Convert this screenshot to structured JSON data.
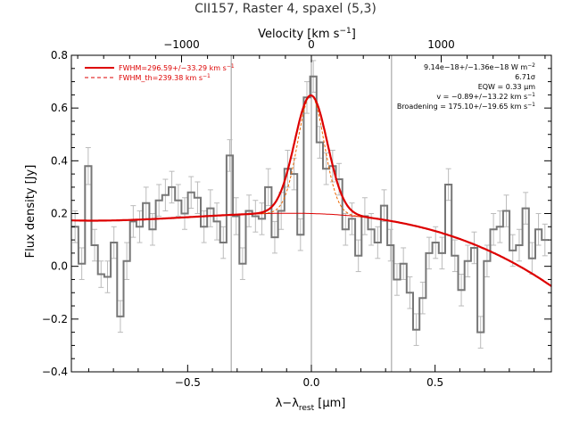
{
  "chart_data": {
    "type": "line",
    "title": "CII157, Raster 4, spaxel (5,3)",
    "xlabel": "λ−λ_rest [μm]",
    "xlabel_main": "λ−λ",
    "xlabel_sub": "rest",
    "xlabel_unit": " [μm]",
    "ylabel": "Flux density [Jy]",
    "top_xlabel": "Velocity [km s⁻¹]",
    "top_xlabel_main": "Velocity [km s",
    "top_xlabel_sup": "−1",
    "top_xlabel_end": "]",
    "xlim": [
      -0.97,
      0.97
    ],
    "ylim": [
      -0.4,
      0.8
    ],
    "x_ticks": [
      -0.5,
      0.0,
      0.5
    ],
    "x_tick_labels": [
      "−0.5",
      "0.0",
      "0.5"
    ],
    "y_ticks": [
      -0.4,
      -0.2,
      0.0,
      0.2,
      0.4,
      0.6,
      0.8
    ],
    "y_tick_labels": [
      "−0.4",
      "−0.2",
      "0.0",
      "0.2",
      "0.4",
      "0.6",
      "0.8"
    ],
    "top_x_ticks_velocity": [
      -1000,
      0,
      1000
    ],
    "top_x_tick_labels": [
      "−1000",
      "0",
      "1000"
    ],
    "velocity_per_micron": 1905.9,
    "vertical_lines_x": [
      -0.324,
      0.0,
      0.324
    ],
    "legend": [
      {
        "label": "FWHM=296.59+/−33.29 km s⁻¹",
        "main": "FWHM=296.59+/−33.29 km s",
        "sup": "−1",
        "style": "solid",
        "color": "#dd0000"
      },
      {
        "label": "FWHM_th=239.38 km s⁻¹",
        "main": "FWHM_th=239.38 km s",
        "sup": "−1",
        "style": "dashed",
        "color": "#dd0000"
      }
    ],
    "annotations": [
      {
        "main": "9.14e−18+/−1.36e−18 W m",
        "sup": "−2"
      },
      {
        "main": "6.71σ",
        "sup": ""
      },
      {
        "main": "EQW = 0.33 μm",
        "sup": ""
      },
      {
        "main": "v = −0.89+/−13.22 km s",
        "sup": "−1"
      },
      {
        "main": "Broadening = 175.10+/−19.65 km s",
        "sup": "−1"
      }
    ],
    "series": [
      {
        "name": "spectrum",
        "style": "step",
        "color": "#777777",
        "x": [
          -0.955,
          -0.928,
          -0.902,
          -0.876,
          -0.85,
          -0.824,
          -0.798,
          -0.772,
          -0.746,
          -0.72,
          -0.694,
          -0.668,
          -0.642,
          -0.616,
          -0.59,
          -0.564,
          -0.538,
          -0.512,
          -0.486,
          -0.46,
          -0.434,
          -0.408,
          -0.382,
          -0.356,
          -0.33,
          -0.304,
          -0.278,
          -0.252,
          -0.226,
          -0.2,
          -0.174,
          -0.148,
          -0.122,
          -0.096,
          -0.07,
          -0.044,
          -0.018,
          0.008,
          0.034,
          0.06,
          0.086,
          0.112,
          0.138,
          0.164,
          0.19,
          0.216,
          0.242,
          0.268,
          0.294,
          0.32,
          0.346,
          0.372,
          0.398,
          0.424,
          0.45,
          0.476,
          0.502,
          0.528,
          0.554,
          0.58,
          0.606,
          0.632,
          0.658,
          0.684,
          0.71,
          0.736,
          0.762,
          0.788,
          0.814,
          0.84,
          0.866,
          0.892,
          0.918,
          0.944
        ],
        "y": [
          0.15,
          0.01,
          0.38,
          0.08,
          -0.03,
          -0.04,
          0.09,
          -0.19,
          0.02,
          0.17,
          0.15,
          0.24,
          0.14,
          0.25,
          0.27,
          0.3,
          0.25,
          0.2,
          0.28,
          0.26,
          0.15,
          0.22,
          0.17,
          0.09,
          0.42,
          0.19,
          0.01,
          0.21,
          0.19,
          0.18,
          0.3,
          0.11,
          0.21,
          0.37,
          0.35,
          0.12,
          0.64,
          0.72,
          0.47,
          0.37,
          0.38,
          0.33,
          0.14,
          0.18,
          0.04,
          0.19,
          0.14,
          0.09,
          0.23,
          0.08,
          -0.05,
          0.01,
          -0.1,
          -0.24,
          -0.12,
          0.05,
          0.09,
          0.05,
          0.31,
          0.04,
          -0.09,
          0.02,
          0.07,
          -0.25,
          0.02,
          0.14,
          0.15,
          0.21,
          0.06,
          0.08,
          0.22,
          0.03,
          0.14,
          0.1
        ],
        "err": [
          0.06,
          0.06,
          0.07,
          0.06,
          0.05,
          0.06,
          0.06,
          0.06,
          0.07,
          0.06,
          0.06,
          0.06,
          0.06,
          0.06,
          0.06,
          0.06,
          0.06,
          0.06,
          0.06,
          0.06,
          0.06,
          0.07,
          0.07,
          0.06,
          0.06,
          0.07,
          0.06,
          0.06,
          0.06,
          0.06,
          0.07,
          0.06,
          0.07,
          0.07,
          0.06,
          0.06,
          0.06,
          0.06,
          0.06,
          0.06,
          0.06,
          0.06,
          0.06,
          0.06,
          0.06,
          0.07,
          0.06,
          0.06,
          0.06,
          0.06,
          0.06,
          0.06,
          0.06,
          0.06,
          0.06,
          0.06,
          0.06,
          0.06,
          0.06,
          0.06,
          0.06,
          0.06,
          0.06,
          0.06,
          0.06,
          0.06,
          0.06,
          0.06,
          0.06,
          0.06,
          0.06,
          0.06,
          0.06,
          0.06
        ]
      },
      {
        "name": "fit",
        "style": "solid",
        "color": "#dd0000",
        "model": {
          "gauss_amp": 0.448,
          "gauss_center": -0.0017,
          "gauss_fwhm": 0.1556,
          "cont_a": 0.2,
          "cont_b": -0.025,
          "cont_c": -0.16,
          "cont_d": -0.11
        }
      },
      {
        "name": "continuum",
        "style": "solid-thin",
        "color": "#dd0000"
      },
      {
        "name": "theoretical profile",
        "style": "dashed",
        "color": "#ee6600",
        "model": {
          "gauss_fwhm": 0.1256
        }
      }
    ]
  }
}
